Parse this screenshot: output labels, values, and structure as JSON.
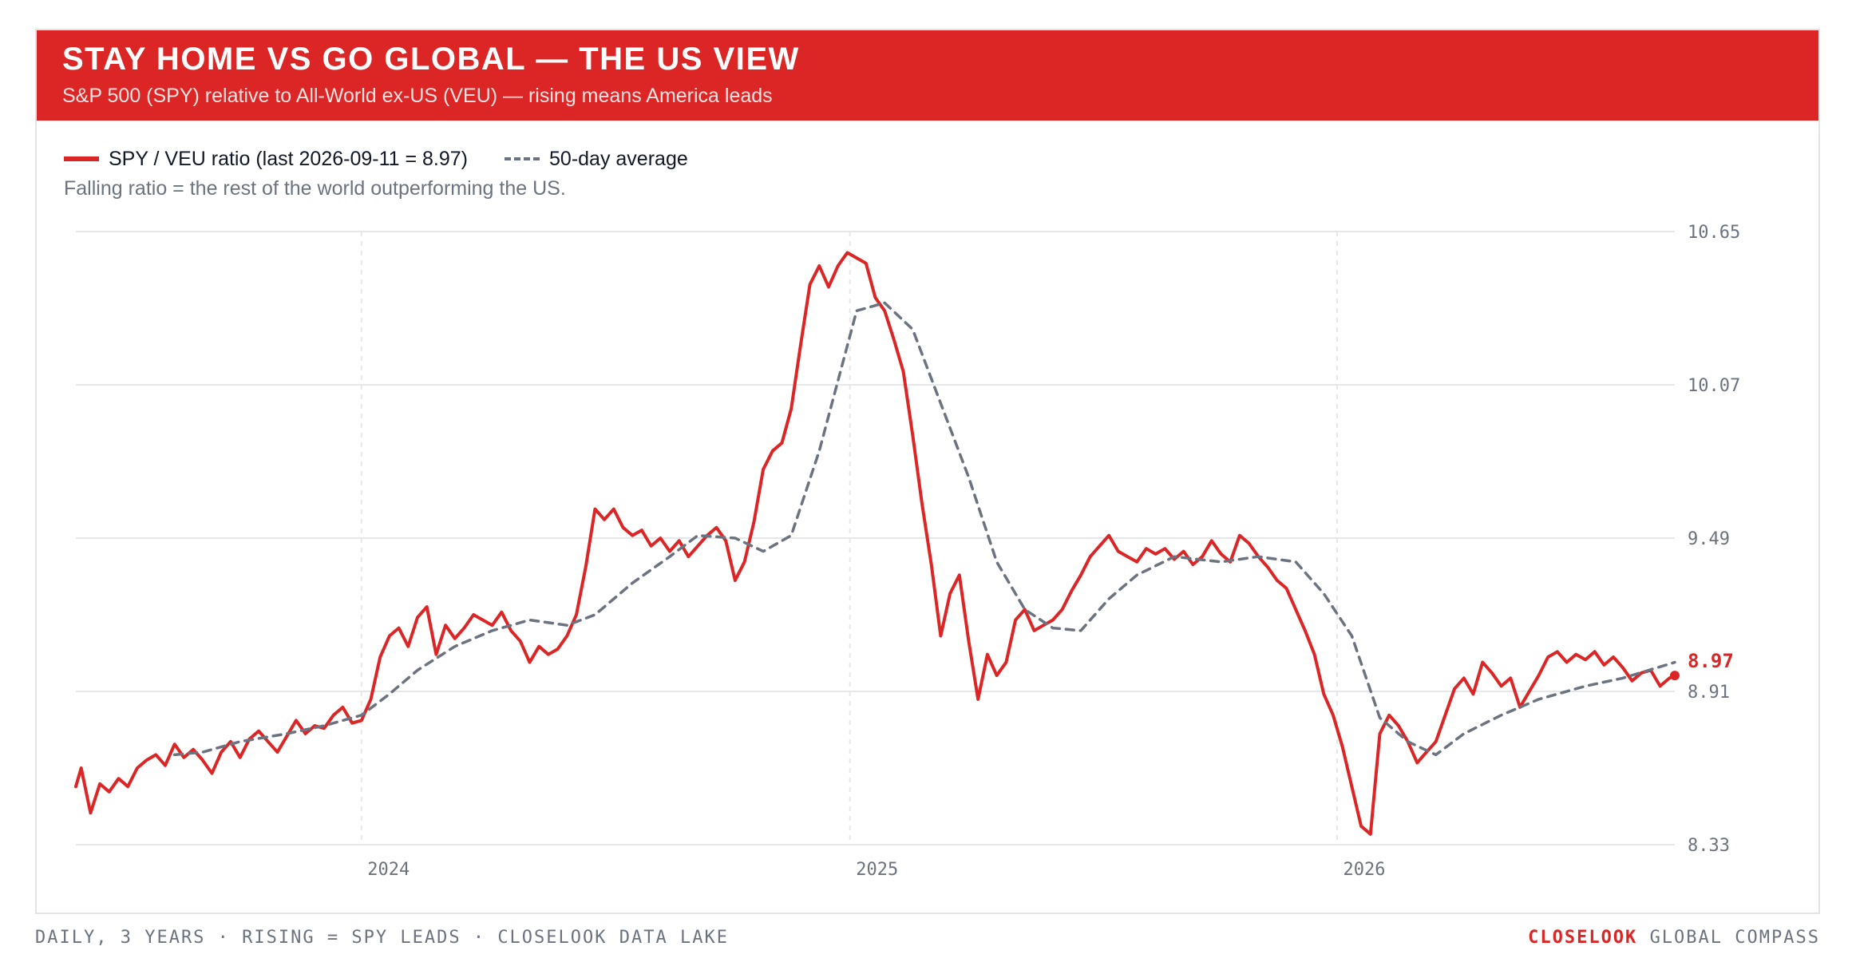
{
  "header": {
    "title": "STAY HOME VS GO GLOBAL — THE US VIEW",
    "subtitle": "S&P 500 (SPY) relative to All-World ex-US (VEU) — rising means America leads"
  },
  "legend": {
    "ratio_label": "SPY / VEU ratio (last 2026-09-11 = 8.97)",
    "avg_label": "50-day average"
  },
  "note": "Falling ratio = the rest of the world outperforming the US.",
  "footer": {
    "left": "DAILY, 3 YEARS · RISING = SPY LEADS · CLOSELOOK DATA LAKE",
    "brand": "CLOSELOOK",
    "right": "GLOBAL COMPASS"
  },
  "colors": {
    "accent": "#dc2626",
    "average": "#6b7280",
    "grid": "#e5e7eb",
    "axis_text": "#6b7280"
  },
  "chart_data": {
    "type": "line",
    "title": "STAY HOME VS GO GLOBAL — THE US VIEW",
    "subtitle": "S&P 500 (SPY) relative to All-World ex-US (VEU) — rising means America leads",
    "x_range": [
      "2023-06-01",
      "2026-09-11"
    ],
    "ylim": [
      8.33,
      10.65
    ],
    "y_ticks": [
      10.65,
      10.07,
      9.49,
      8.91,
      8.33
    ],
    "y_tick_labels": [
      "10.65",
      "10.07",
      "9.49",
      "8.91",
      "8.33"
    ],
    "x_ticks": [
      {
        "date": "2024-01-01",
        "label": "2024"
      },
      {
        "date": "2025-01-01",
        "label": "2025"
      },
      {
        "date": "2026-01-01",
        "label": "2026"
      }
    ],
    "last_value": 8.97,
    "last_value_label": "8.97",
    "grid": true,
    "legend_position": "top-left",
    "series": [
      {
        "name": "SPY / VEU ratio (last 2026-09-11 = 8.97)",
        "style": "solid",
        "color": "#dc2626",
        "points": [
          [
            "2023-06-01",
            8.55
          ],
          [
            "2023-06-05",
            8.62
          ],
          [
            "2023-06-12",
            8.45
          ],
          [
            "2023-06-19",
            8.56
          ],
          [
            "2023-06-26",
            8.53
          ],
          [
            "2023-07-03",
            8.58
          ],
          [
            "2023-07-10",
            8.55
          ],
          [
            "2023-07-17",
            8.62
          ],
          [
            "2023-07-24",
            8.65
          ],
          [
            "2023-07-31",
            8.67
          ],
          [
            "2023-08-07",
            8.63
          ],
          [
            "2023-08-14",
            8.71
          ],
          [
            "2023-08-21",
            8.66
          ],
          [
            "2023-08-28",
            8.69
          ],
          [
            "2023-09-04",
            8.65
          ],
          [
            "2023-09-11",
            8.6
          ],
          [
            "2023-09-18",
            8.68
          ],
          [
            "2023-09-25",
            8.72
          ],
          [
            "2023-10-02",
            8.66
          ],
          [
            "2023-10-09",
            8.73
          ],
          [
            "2023-10-16",
            8.76
          ],
          [
            "2023-10-23",
            8.72
          ],
          [
            "2023-10-30",
            8.68
          ],
          [
            "2023-11-06",
            8.74
          ],
          [
            "2023-11-13",
            8.8
          ],
          [
            "2023-11-20",
            8.75
          ],
          [
            "2023-11-27",
            8.78
          ],
          [
            "2023-12-04",
            8.77
          ],
          [
            "2023-12-11",
            8.82
          ],
          [
            "2023-12-18",
            8.85
          ],
          [
            "2023-12-25",
            8.79
          ],
          [
            "2024-01-01",
            8.8
          ],
          [
            "2024-01-08",
            8.88
          ],
          [
            "2024-01-15",
            9.04
          ],
          [
            "2024-01-22",
            9.12
          ],
          [
            "2024-01-29",
            9.15
          ],
          [
            "2024-02-05",
            9.08
          ],
          [
            "2024-02-12",
            9.19
          ],
          [
            "2024-02-19",
            9.23
          ],
          [
            "2024-02-26",
            9.05
          ],
          [
            "2024-03-04",
            9.16
          ],
          [
            "2024-03-11",
            9.11
          ],
          [
            "2024-03-18",
            9.15
          ],
          [
            "2024-03-25",
            9.2
          ],
          [
            "2024-04-01",
            9.18
          ],
          [
            "2024-04-08",
            9.16
          ],
          [
            "2024-04-15",
            9.21
          ],
          [
            "2024-04-22",
            9.14
          ],
          [
            "2024-04-29",
            9.1
          ],
          [
            "2024-05-06",
            9.02
          ],
          [
            "2024-05-13",
            9.08
          ],
          [
            "2024-05-20",
            9.05
          ],
          [
            "2024-05-27",
            9.07
          ],
          [
            "2024-06-03",
            9.12
          ],
          [
            "2024-06-10",
            9.2
          ],
          [
            "2024-06-17",
            9.38
          ],
          [
            "2024-06-24",
            9.6
          ],
          [
            "2024-07-01",
            9.56
          ],
          [
            "2024-07-08",
            9.6
          ],
          [
            "2024-07-15",
            9.53
          ],
          [
            "2024-07-22",
            9.5
          ],
          [
            "2024-07-29",
            9.52
          ],
          [
            "2024-08-05",
            9.46
          ],
          [
            "2024-08-12",
            9.49
          ],
          [
            "2024-08-19",
            9.44
          ],
          [
            "2024-08-26",
            9.48
          ],
          [
            "2024-09-02",
            9.42
          ],
          [
            "2024-09-09",
            9.46
          ],
          [
            "2024-09-16",
            9.5
          ],
          [
            "2024-09-23",
            9.53
          ],
          [
            "2024-09-30",
            9.48
          ],
          [
            "2024-10-07",
            9.33
          ],
          [
            "2024-10-14",
            9.4
          ],
          [
            "2024-10-21",
            9.55
          ],
          [
            "2024-10-28",
            9.75
          ],
          [
            "2024-11-04",
            9.82
          ],
          [
            "2024-11-11",
            9.85
          ],
          [
            "2024-11-18",
            9.98
          ],
          [
            "2024-11-25",
            10.22
          ],
          [
            "2024-12-02",
            10.45
          ],
          [
            "2024-12-09",
            10.52
          ],
          [
            "2024-12-16",
            10.44
          ],
          [
            "2024-12-23",
            10.52
          ],
          [
            "2024-12-30",
            10.57
          ],
          [
            "2025-01-06",
            10.55
          ],
          [
            "2025-01-13",
            10.53
          ],
          [
            "2025-01-20",
            10.4
          ],
          [
            "2025-01-27",
            10.35
          ],
          [
            "2025-02-03",
            10.24
          ],
          [
            "2025-02-10",
            10.12
          ],
          [
            "2025-02-17",
            9.88
          ],
          [
            "2025-02-24",
            9.62
          ],
          [
            "2025-03-03",
            9.39
          ],
          [
            "2025-03-10",
            9.12
          ],
          [
            "2025-03-17",
            9.28
          ],
          [
            "2025-03-24",
            9.35
          ],
          [
            "2025-03-31",
            9.1
          ],
          [
            "2025-04-07",
            8.88
          ],
          [
            "2025-04-14",
            9.05
          ],
          [
            "2025-04-21",
            8.97
          ],
          [
            "2025-04-28",
            9.02
          ],
          [
            "2025-05-05",
            9.18
          ],
          [
            "2025-05-12",
            9.22
          ],
          [
            "2025-05-19",
            9.14
          ],
          [
            "2025-05-26",
            9.16
          ],
          [
            "2025-06-02",
            9.18
          ],
          [
            "2025-06-09",
            9.22
          ],
          [
            "2025-06-16",
            9.29
          ],
          [
            "2025-06-23",
            9.35
          ],
          [
            "2025-06-30",
            9.42
          ],
          [
            "2025-07-07",
            9.46
          ],
          [
            "2025-07-14",
            9.5
          ],
          [
            "2025-07-21",
            9.44
          ],
          [
            "2025-07-28",
            9.42
          ],
          [
            "2025-08-04",
            9.4
          ],
          [
            "2025-08-11",
            9.45
          ],
          [
            "2025-08-18",
            9.43
          ],
          [
            "2025-08-25",
            9.45
          ],
          [
            "2025-09-01",
            9.41
          ],
          [
            "2025-09-08",
            9.44
          ],
          [
            "2025-09-15",
            9.39
          ],
          [
            "2025-09-22",
            9.42
          ],
          [
            "2025-09-29",
            9.48
          ],
          [
            "2025-10-06",
            9.43
          ],
          [
            "2025-10-13",
            9.4
          ],
          [
            "2025-10-20",
            9.5
          ],
          [
            "2025-10-27",
            9.47
          ],
          [
            "2025-11-03",
            9.42
          ],
          [
            "2025-11-10",
            9.38
          ],
          [
            "2025-11-17",
            9.33
          ],
          [
            "2025-11-24",
            9.3
          ],
          [
            "2025-12-01",
            9.22
          ],
          [
            "2025-12-08",
            9.14
          ],
          [
            "2025-12-15",
            9.05
          ],
          [
            "2025-12-22",
            8.9
          ],
          [
            "2025-12-29",
            8.82
          ],
          [
            "2026-01-05",
            8.7
          ],
          [
            "2026-01-12",
            8.55
          ],
          [
            "2026-01-19",
            8.4
          ],
          [
            "2026-01-26",
            8.37
          ],
          [
            "2026-02-02",
            8.75
          ],
          [
            "2026-02-09",
            8.82
          ],
          [
            "2026-02-16",
            8.78
          ],
          [
            "2026-02-23",
            8.72
          ],
          [
            "2026-03-02",
            8.64
          ],
          [
            "2026-03-09",
            8.68
          ],
          [
            "2026-03-16",
            8.72
          ],
          [
            "2026-03-23",
            8.82
          ],
          [
            "2026-03-30",
            8.92
          ],
          [
            "2026-04-06",
            8.96
          ],
          [
            "2026-04-13",
            8.9
          ],
          [
            "2026-04-20",
            9.02
          ],
          [
            "2026-04-27",
            8.98
          ],
          [
            "2026-05-04",
            8.93
          ],
          [
            "2026-05-11",
            8.96
          ],
          [
            "2026-05-18",
            8.85
          ],
          [
            "2026-05-25",
            8.91
          ],
          [
            "2026-06-01",
            8.97
          ],
          [
            "2026-06-08",
            9.04
          ],
          [
            "2026-06-15",
            9.06
          ],
          [
            "2026-06-22",
            9.02
          ],
          [
            "2026-06-29",
            9.05
          ],
          [
            "2026-07-06",
            9.03
          ],
          [
            "2026-07-13",
            9.06
          ],
          [
            "2026-07-20",
            9.01
          ],
          [
            "2026-07-27",
            9.04
          ],
          [
            "2026-08-03",
            9.0
          ],
          [
            "2026-08-10",
            8.95
          ],
          [
            "2026-08-17",
            8.98
          ],
          [
            "2026-08-24",
            8.99
          ],
          [
            "2026-08-31",
            8.93
          ],
          [
            "2026-09-07",
            8.96
          ],
          [
            "2026-09-11",
            8.97
          ]
        ]
      },
      {
        "name": "50-day average",
        "style": "dashed",
        "color": "#6b7280",
        "points": [
          [
            "2023-08-14",
            8.67
          ],
          [
            "2023-09-04",
            8.68
          ],
          [
            "2023-10-02",
            8.72
          ],
          [
            "2023-11-06",
            8.75
          ],
          [
            "2023-12-04",
            8.78
          ],
          [
            "2024-01-01",
            8.82
          ],
          [
            "2024-01-22",
            8.9
          ],
          [
            "2024-02-12",
            8.99
          ],
          [
            "2024-03-11",
            9.08
          ],
          [
            "2024-04-08",
            9.14
          ],
          [
            "2024-05-06",
            9.18
          ],
          [
            "2024-06-03",
            9.16
          ],
          [
            "2024-06-24",
            9.2
          ],
          [
            "2024-07-22",
            9.32
          ],
          [
            "2024-08-19",
            9.42
          ],
          [
            "2024-09-09",
            9.5
          ],
          [
            "2024-10-07",
            9.49
          ],
          [
            "2024-10-28",
            9.44
          ],
          [
            "2024-11-18",
            9.5
          ],
          [
            "2024-12-09",
            9.82
          ],
          [
            "2025-01-06",
            10.35
          ],
          [
            "2025-01-27",
            10.38
          ],
          [
            "2025-02-17",
            10.28
          ],
          [
            "2025-03-10",
            10.0
          ],
          [
            "2025-03-31",
            9.72
          ],
          [
            "2025-04-21",
            9.4
          ],
          [
            "2025-05-12",
            9.22
          ],
          [
            "2025-06-02",
            9.15
          ],
          [
            "2025-06-23",
            9.14
          ],
          [
            "2025-07-14",
            9.26
          ],
          [
            "2025-08-04",
            9.35
          ],
          [
            "2025-09-01",
            9.42
          ],
          [
            "2025-10-06",
            9.4
          ],
          [
            "2025-11-03",
            9.42
          ],
          [
            "2025-12-01",
            9.4
          ],
          [
            "2025-12-22",
            9.28
          ],
          [
            "2026-01-12",
            9.12
          ],
          [
            "2026-02-02",
            8.81
          ],
          [
            "2026-02-23",
            8.72
          ],
          [
            "2026-03-16",
            8.67
          ],
          [
            "2026-04-06",
            8.75
          ],
          [
            "2026-05-04",
            8.82
          ],
          [
            "2026-06-01",
            8.88
          ],
          [
            "2026-07-06",
            8.93
          ],
          [
            "2026-08-03",
            8.96
          ],
          [
            "2026-09-11",
            9.02
          ]
        ]
      }
    ]
  }
}
